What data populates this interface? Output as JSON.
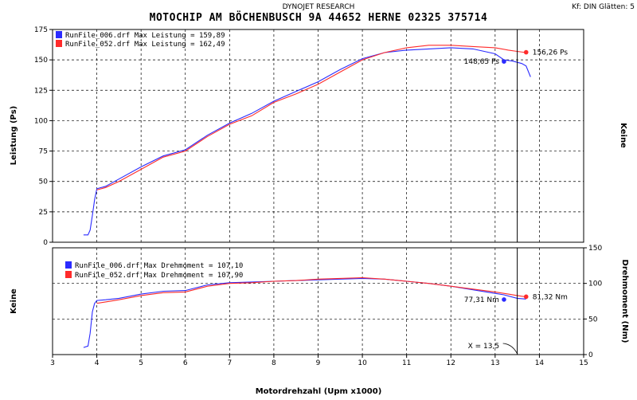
{
  "header": {
    "vendor": "DYNOJET RESEARCH",
    "title": "MOTOCHIP AM BÖCHENBUSCH 9A 44652 HERNE 02325 375714",
    "settings": "Kf: DIN  Glätten: 5"
  },
  "chart_data": [
    {
      "type": "line",
      "ylabel": "Leistung (Ps)",
      "ylabel_right": "Keine",
      "ylim": [
        0,
        175
      ],
      "xlim": [
        3,
        15
      ],
      "yticks": [
        0,
        25,
        50,
        75,
        100,
        125,
        150,
        175
      ],
      "grid": true,
      "legend_placement": "top-left",
      "series": [
        {
          "name": "RunFile_006.drf Max Leistung = 159,89",
          "color": "#2b2bff",
          "x": [
            3.7,
            3.8,
            3.85,
            3.9,
            3.95,
            4.0,
            4.2,
            4.5,
            5.0,
            5.5,
            6.0,
            6.5,
            7.0,
            7.5,
            8.0,
            8.5,
            9.0,
            9.5,
            10.0,
            10.5,
            11.0,
            11.5,
            12.0,
            12.5,
            13.0,
            13.2,
            13.4,
            13.5,
            13.6,
            13.7,
            13.8
          ],
          "values": [
            6,
            6,
            10,
            22,
            35,
            44,
            46,
            52,
            62,
            71,
            76,
            88,
            98,
            106,
            116,
            124,
            132,
            142,
            151,
            156,
            158,
            159,
            160,
            159,
            155,
            150,
            149,
            148,
            147,
            145,
            136
          ]
        },
        {
          "name": "RunFile_052.drf Max Leistung = 162,49",
          "color": "#ff2b2b",
          "x": [
            4.0,
            4.2,
            4.5,
            5.0,
            5.5,
            6.0,
            6.5,
            7.0,
            7.5,
            8.0,
            8.5,
            9.0,
            9.5,
            10.0,
            10.5,
            11.0,
            11.5,
            12.0,
            12.5,
            13.0,
            13.3,
            13.5,
            13.7
          ],
          "values": [
            43,
            45,
            50,
            60,
            70,
            75,
            87,
            97,
            104,
            115,
            122,
            130,
            140,
            150,
            156,
            160,
            162,
            162,
            161,
            160,
            158,
            157,
            156
          ]
        }
      ],
      "annotations": [
        {
          "text": "156,26 Ps",
          "x": 13.7,
          "y": 156.26,
          "color": "#ff2b2b"
        },
        {
          "text": "148,65 Ps",
          "x": 13.2,
          "y": 148.65,
          "color": "#2b2bff"
        }
      ]
    },
    {
      "type": "line",
      "xlabel": "Motordrehzahl (Upm x1000)",
      "ylabel": "Keine",
      "ylabel_right": "Drehmoment (Nm)",
      "xlim": [
        3,
        15
      ],
      "xticks": [
        3,
        4,
        5,
        6,
        7,
        8,
        9,
        10,
        11,
        12,
        13,
        14,
        15
      ],
      "ylim": [
        0,
        150
      ],
      "yticks_right": [
        0,
        50,
        100,
        150
      ],
      "grid": true,
      "legend_placement": "top-left",
      "series": [
        {
          "name": "RunFile_006.drf Max Drehmoment = 107,10",
          "color": "#2b2bff",
          "x": [
            3.7,
            3.8,
            3.85,
            3.9,
            3.95,
            4.0,
            4.2,
            4.5,
            5.0,
            5.5,
            6.0,
            6.5,
            7.0,
            7.5,
            8.0,
            8.5,
            9.0,
            9.5,
            10.0,
            10.5,
            11.0,
            11.5,
            12.0,
            12.5,
            13.0,
            13.2,
            13.5,
            13.7
          ],
          "values": [
            10,
            12,
            30,
            60,
            72,
            76,
            77,
            79,
            85,
            89,
            90,
            98,
            101,
            102,
            103,
            104,
            105,
            106,
            107,
            106,
            103,
            100,
            96,
            91,
            86,
            84,
            79,
            78
          ]
        },
        {
          "name": "RunFile_052.drf Max Drehmoment = 107,90",
          "color": "#ff2b2b",
          "x": [
            4.0,
            4.2,
            4.5,
            5.0,
            5.5,
            6.0,
            6.5,
            7.0,
            7.5,
            8.0,
            8.5,
            9.0,
            9.5,
            10.0,
            10.5,
            11.0,
            11.5,
            12.0,
            12.5,
            13.0,
            13.3,
            13.5,
            13.7
          ],
          "values": [
            72,
            74,
            77,
            83,
            87,
            88,
            96,
            100,
            101,
            103,
            104,
            106,
            107,
            108,
            106,
            103,
            100,
            96,
            92,
            88,
            85,
            83,
            81
          ]
        }
      ],
      "annotations": [
        {
          "text": "81,32 Nm",
          "x": 13.7,
          "y": 81.32,
          "color": "#ff2b2b"
        },
        {
          "text": "77,31 Nm",
          "x": 13.2,
          "y": 77.31,
          "color": "#2b2bff"
        }
      ],
      "cursor": {
        "text": "X = 13,5",
        "x": 13.5
      }
    }
  ]
}
